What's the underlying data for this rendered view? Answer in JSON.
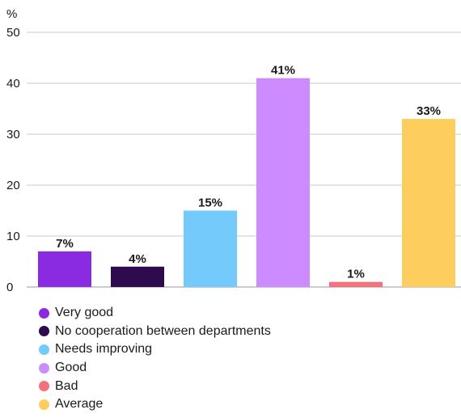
{
  "chart_data": {
    "type": "bar",
    "unit_label": "%",
    "ylim": [
      0,
      50
    ],
    "yticks": [
      0,
      10,
      20,
      30,
      40,
      50
    ],
    "grid": true,
    "legend_position": "bottom-left",
    "categories": [
      "Very good",
      "No cooperation between departments",
      "Needs improving",
      "Good",
      "Bad",
      "Average"
    ],
    "values": [
      7,
      4,
      15,
      41,
      1,
      33
    ],
    "data_labels": [
      "7%",
      "4%",
      "15%",
      "41%",
      "1%",
      "33%"
    ],
    "colors": [
      "#8a2be2",
      "#2e0a4f",
      "#74cbfb",
      "#cc8cff",
      "#f4727b",
      "#fdcd5e"
    ]
  }
}
